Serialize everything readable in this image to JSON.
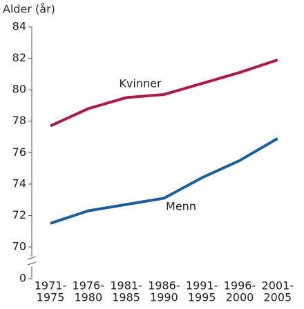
{
  "chart_data": {
    "type": "line",
    "y_label": "Alder (år)",
    "categories": [
      [
        "1971-",
        "1975"
      ],
      [
        "1976-",
        "1980"
      ],
      [
        "1981-",
        "1985"
      ],
      [
        "1986-",
        "1990"
      ],
      [
        "1991-",
        "1995"
      ],
      [
        "1996-",
        "2000"
      ],
      [
        "2001-",
        "2005"
      ]
    ],
    "series": [
      {
        "name": "Kvinner",
        "color": "#b0154a",
        "values": [
          77.7,
          78.8,
          79.5,
          79.7,
          80.4,
          81.1,
          81.9
        ]
      },
      {
        "name": "Menn",
        "color": "#1a5e9e",
        "values": [
          71.5,
          72.3,
          72.7,
          73.1,
          74.4,
          75.5,
          76.9
        ]
      }
    ],
    "ylim": [
      70,
      84
    ],
    "yticks": [
      70,
      72,
      74,
      76,
      78,
      80,
      82,
      84
    ],
    "yticks_below_break": [
      0
    ]
  }
}
